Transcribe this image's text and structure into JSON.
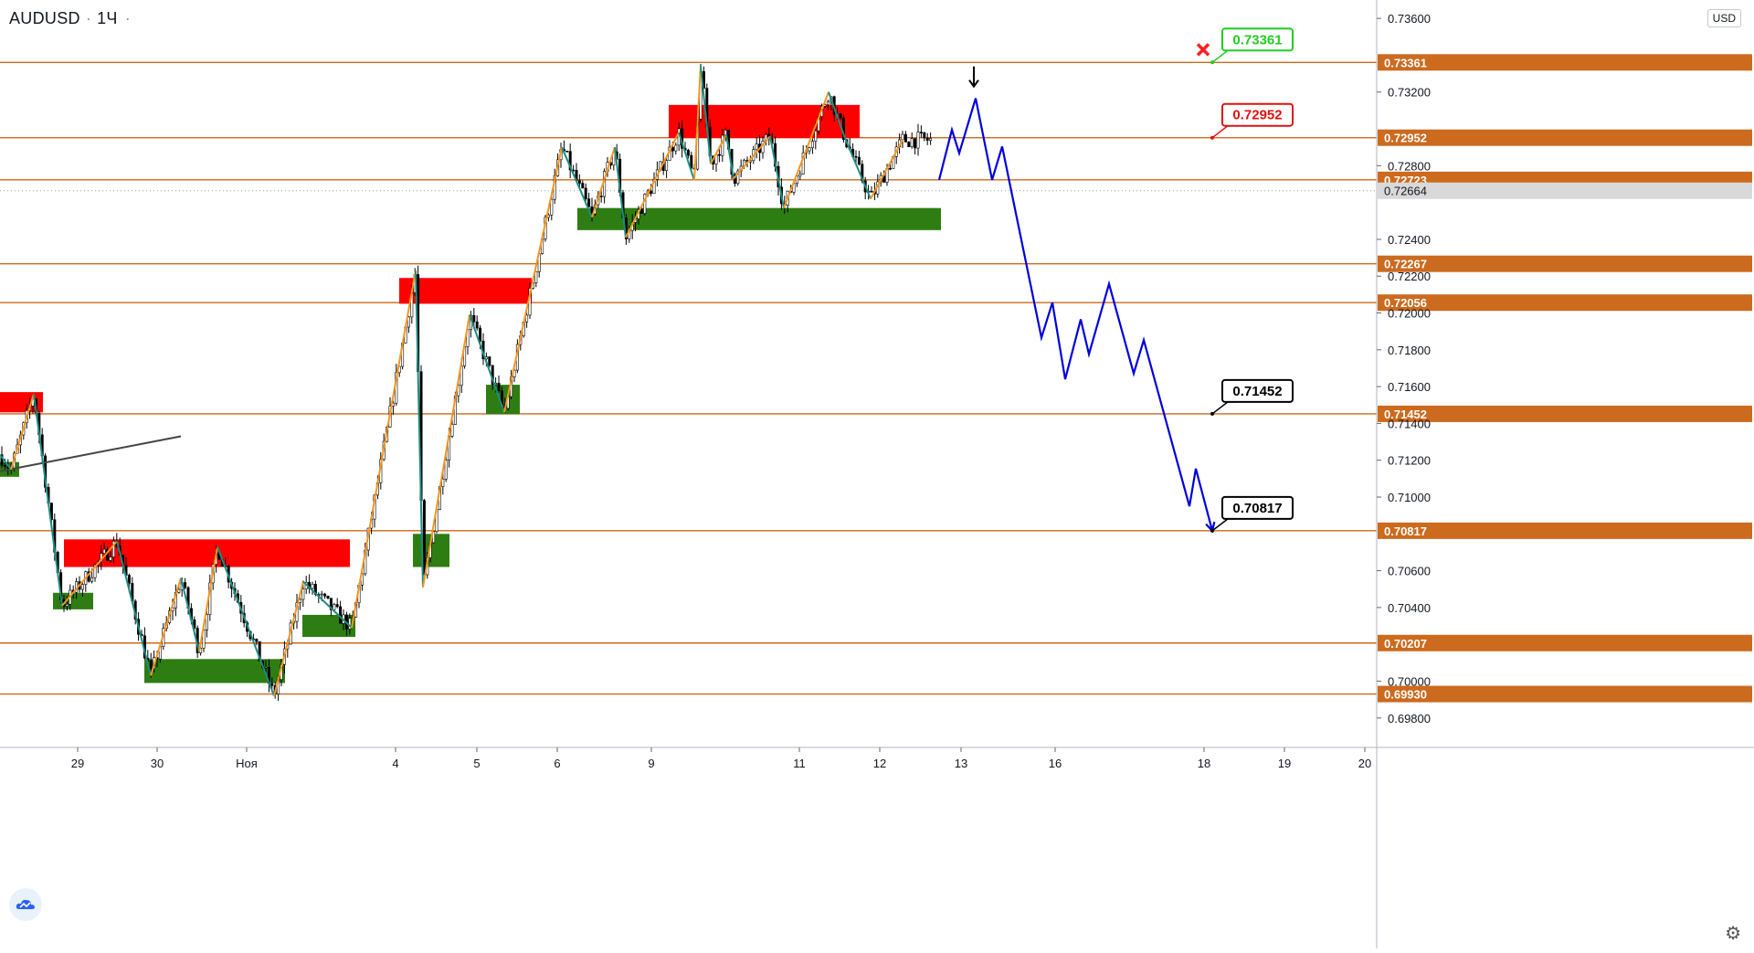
{
  "header": {
    "symbol": "AUDUSD",
    "interval": "1Ч"
  },
  "currency": "USD",
  "colors": {
    "level_line": "#cc6a1e",
    "supply_zone": "#ff0000",
    "demand_zone": "#2e7d13",
    "zigzag_up": "#f5961e",
    "zigzag_down": "#1e8c82",
    "forecast": "#0000dd",
    "price_tag_bg": "#cc6a1e",
    "current_price_tag_bg": "#d9d9d9"
  },
  "chart_data": {
    "type": "candlestick",
    "symbol": "AUDUSD",
    "timeframe": "1H",
    "ylim": [
      0.6964,
      0.737
    ],
    "y_ticks": [
      "0.73600",
      "0.73200",
      "0.72800",
      "0.72400",
      "0.72200",
      "0.72000",
      "0.71800",
      "0.71600",
      "0.71400",
      "0.71200",
      "0.71000",
      "0.70600",
      "0.70400",
      "0.70000",
      "0.69800"
    ],
    "x_ticks": [
      {
        "label": "29",
        "t": 85
      },
      {
        "label": "30",
        "t": 172
      },
      {
        "label": "Ноя",
        "t": 270
      },
      {
        "label": "4",
        "t": 433
      },
      {
        "label": "5",
        "t": 522
      },
      {
        "label": "6",
        "t": 610
      },
      {
        "label": "9",
        "t": 713
      },
      {
        "label": "11",
        "t": 875
      },
      {
        "label": "12",
        "t": 963
      },
      {
        "label": "13",
        "t": 1052
      },
      {
        "label": "16",
        "t": 1155
      },
      {
        "label": "18",
        "t": 1318
      },
      {
        "label": "19",
        "t": 1406
      },
      {
        "label": "20",
        "t": 1494
      }
    ],
    "levels": [
      {
        "label": "0.73361",
        "value": 0.73361
      },
      {
        "label": "0.72952",
        "value": 0.72952
      },
      {
        "label": "0.72723",
        "value": 0.72723
      },
      {
        "label": "0.72267",
        "value": 0.72267
      },
      {
        "label": "0.72056",
        "value": 0.72056
      },
      {
        "label": "0.71452",
        "value": 0.71452
      },
      {
        "label": "0.70817",
        "value": 0.70817
      },
      {
        "label": "0.70207",
        "value": 0.70207
      },
      {
        "label": "0.69930",
        "value": 0.6993
      }
    ],
    "current_price": {
      "label": "0.72664",
      "value": 0.72664
    },
    "supply_zones": [
      {
        "t0": 0,
        "t1": 47,
        "top": 0.7157,
        "bottom": 0.7146
      },
      {
        "t0": 70,
        "t1": 383,
        "top": 0.7077,
        "bottom": 0.7062
      },
      {
        "t0": 437,
        "t1": 582,
        "top": 0.7219,
        "bottom": 0.7205
      },
      {
        "t0": 732,
        "t1": 941,
        "top": 0.7313,
        "bottom": 0.7295
      }
    ],
    "demand_zones": [
      {
        "t0": 0,
        "t1": 21,
        "top": 0.7119,
        "bottom": 0.7111
      },
      {
        "t0": 58,
        "t1": 102,
        "top": 0.7048,
        "bottom": 0.7039
      },
      {
        "t0": 158,
        "t1": 312,
        "top": 0.7012,
        "bottom": 0.6999
      },
      {
        "t0": 331,
        "t1": 389,
        "top": 0.7036,
        "bottom": 0.7024
      },
      {
        "t0": 452,
        "t1": 492,
        "top": 0.708,
        "bottom": 0.7062
      },
      {
        "t0": 532,
        "t1": 569,
        "top": 0.7161,
        "bottom": 0.7145
      },
      {
        "t0": 632,
        "t1": 1030,
        "top": 0.7257,
        "bottom": 0.7245
      }
    ],
    "trendline": [
      {
        "t": 0,
        "v": 0.7114
      },
      {
        "t": 198,
        "v": 0.7133
      }
    ],
    "zigzag": [
      {
        "t": 0,
        "v": 0.7123
      },
      {
        "t": 12,
        "v": 0.7115
      },
      {
        "t": 37,
        "v": 0.7156
      },
      {
        "t": 68,
        "v": 0.7041
      },
      {
        "t": 128,
        "v": 0.7076
      },
      {
        "t": 165,
        "v": 0.7003
      },
      {
        "t": 198,
        "v": 0.7056
      },
      {
        "t": 218,
        "v": 0.7016
      },
      {
        "t": 238,
        "v": 0.7073
      },
      {
        "t": 300,
        "v": 0.6992
      },
      {
        "t": 332,
        "v": 0.7054
      },
      {
        "t": 385,
        "v": 0.7029
      },
      {
        "t": 455,
        "v": 0.7223
      },
      {
        "t": 463,
        "v": 0.7051
      },
      {
        "t": 514,
        "v": 0.7199
      },
      {
        "t": 552,
        "v": 0.7146
      },
      {
        "t": 615,
        "v": 0.729
      },
      {
        "t": 648,
        "v": 0.7252
      },
      {
        "t": 673,
        "v": 0.729
      },
      {
        "t": 685,
        "v": 0.7241
      },
      {
        "t": 743,
        "v": 0.7298
      },
      {
        "t": 760,
        "v": 0.7272
      },
      {
        "t": 767,
        "v": 0.7334
      },
      {
        "t": 778,
        "v": 0.7281
      },
      {
        "t": 795,
        "v": 0.7297
      },
      {
        "t": 803,
        "v": 0.7273
      },
      {
        "t": 843,
        "v": 0.7296
      },
      {
        "t": 858,
        "v": 0.7257
      },
      {
        "t": 907,
        "v": 0.732
      },
      {
        "t": 925,
        "v": 0.7295
      },
      {
        "t": 953,
        "v": 0.7262
      },
      {
        "t": 988,
        "v": 0.7294
      }
    ],
    "forecast_path": [
      {
        "t": 1028,
        "v": 0.72723
      },
      {
        "t": 1042,
        "v": 0.72995
      },
      {
        "t": 1050,
        "v": 0.72868
      },
      {
        "t": 1068,
        "v": 0.73166
      },
      {
        "t": 1086,
        "v": 0.72723
      },
      {
        "t": 1097,
        "v": 0.72904
      },
      {
        "t": 1140,
        "v": 0.71866
      },
      {
        "t": 1152,
        "v": 0.72056
      },
      {
        "t": 1166,
        "v": 0.7164
      },
      {
        "t": 1183,
        "v": 0.71965
      },
      {
        "t": 1192,
        "v": 0.71776
      },
      {
        "t": 1214,
        "v": 0.72158
      },
      {
        "t": 1241,
        "v": 0.71671
      },
      {
        "t": 1252,
        "v": 0.71853
      },
      {
        "t": 1302,
        "v": 0.7095
      },
      {
        "t": 1309,
        "v": 0.71154
      },
      {
        "t": 1327,
        "v": 0.70817
      }
    ],
    "annotations": [
      {
        "label": "0.73361",
        "value": 0.73361,
        "t": 1327,
        "style": "green"
      },
      {
        "label": "0.72952",
        "value": 0.72952,
        "t": 1327,
        "style": "red"
      },
      {
        "label": "0.71452",
        "value": 0.71452,
        "t": 1327,
        "style": "black"
      },
      {
        "label": "0.70817",
        "value": 0.70817,
        "t": 1327,
        "style": "black"
      }
    ],
    "markers": [
      {
        "kind": "stop-cross",
        "t": 1317,
        "value": 0.7343
      },
      {
        "kind": "down-arrow",
        "t": 1066,
        "value": 0.7323
      }
    ]
  }
}
